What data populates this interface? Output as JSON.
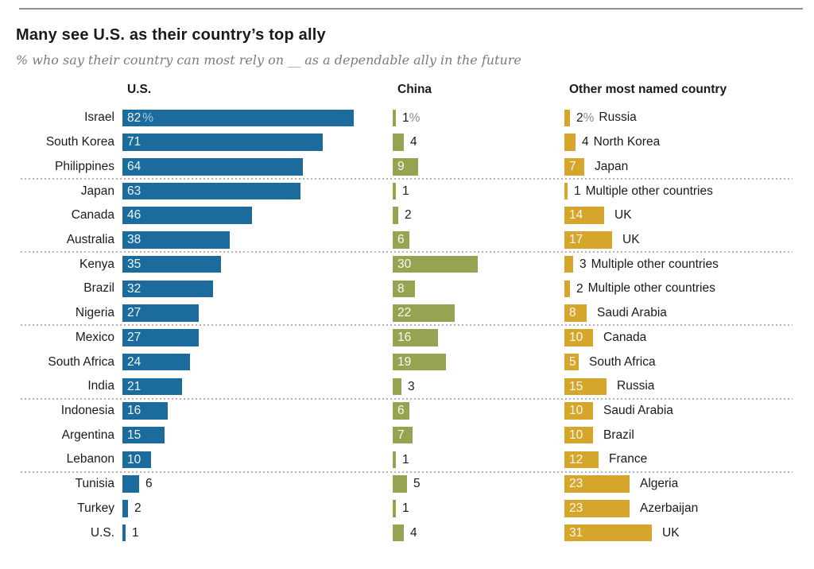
{
  "chart_data": {
    "type": "bar",
    "title": "Many see U.S. as their country’s top ally",
    "subtitle": "% who say their country can most rely on __ as a dependable ally in the future",
    "unit": "%",
    "columns": {
      "us": "U.S.",
      "china": "China",
      "other": "Other most named country"
    },
    "colors": {
      "us": "#1b6b9c",
      "china": "#98a351",
      "other": "#d6a62c"
    },
    "group_size": 3,
    "rows": [
      {
        "country": "Israel",
        "us": 82,
        "us_suffix": "%",
        "china": 1,
        "china_suffix": "%",
        "other": 2,
        "other_suffix": "%",
        "other_name": "Russia"
      },
      {
        "country": "South Korea",
        "us": 71,
        "china": 4,
        "other": 4,
        "other_name": "North Korea"
      },
      {
        "country": "Philippines",
        "us": 64,
        "china": 9,
        "other": 7,
        "other_name": "Japan"
      },
      {
        "country": "Japan",
        "us": 63,
        "china": 1,
        "other": 1,
        "other_name": "Multiple other countries"
      },
      {
        "country": "Canada",
        "us": 46,
        "china": 2,
        "other": 14,
        "other_name": "UK"
      },
      {
        "country": "Australia",
        "us": 38,
        "china": 6,
        "other": 17,
        "other_name": "UK"
      },
      {
        "country": "Kenya",
        "us": 35,
        "china": 30,
        "other": 3,
        "other_name": "Multiple other countries"
      },
      {
        "country": "Brazil",
        "us": 32,
        "china": 8,
        "other": 2,
        "other_name": "Multiple other countries"
      },
      {
        "country": "Nigeria",
        "us": 27,
        "china": 22,
        "other": 8,
        "other_name": "Saudi Arabia"
      },
      {
        "country": "Mexico",
        "us": 27,
        "china": 16,
        "other": 10,
        "other_name": "Canada"
      },
      {
        "country": "South Africa",
        "us": 24,
        "china": 19,
        "other": 5,
        "other_name": "South Africa"
      },
      {
        "country": "India",
        "us": 21,
        "china": 3,
        "other": 15,
        "other_name": "Russia"
      },
      {
        "country": "Indonesia",
        "us": 16,
        "china": 6,
        "other": 10,
        "other_name": "Saudi Arabia"
      },
      {
        "country": "Argentina",
        "us": 15,
        "china": 7,
        "other": 10,
        "other_name": "Brazil"
      },
      {
        "country": "Lebanon",
        "us": 10,
        "china": 1,
        "other": 12,
        "other_name": "France"
      },
      {
        "country": "Tunisia",
        "us": 6,
        "china": 5,
        "other": 23,
        "other_name": "Algeria"
      },
      {
        "country": "Turkey",
        "us": 2,
        "china": 1,
        "other": 23,
        "other_name": "Azerbaijan"
      },
      {
        "country": "U.S.",
        "us": 1,
        "china": 4,
        "other": 31,
        "other_name": "UK"
      }
    ]
  }
}
